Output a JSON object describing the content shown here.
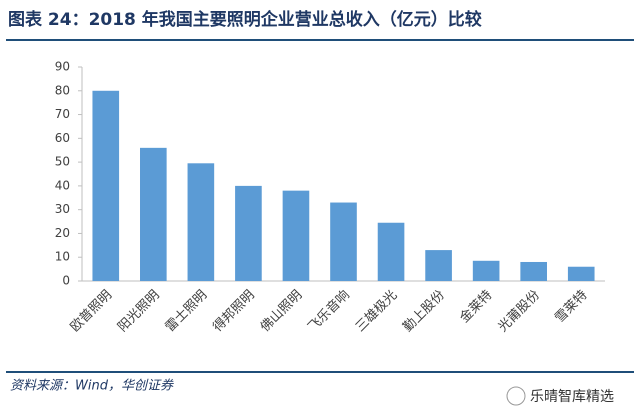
{
  "chart_data": {
    "type": "bar",
    "title": "图表 24：2018 年我国主要照明企业营业总收入（亿元）比较",
    "categories": [
      "欧普照明",
      "阳光照明",
      "雷士照明",
      "得邦照明",
      "佛山照明",
      "飞乐音响",
      "三雄极光",
      "勤上股份",
      "金莱特",
      "光莆股份",
      "雪莱特"
    ],
    "values": [
      80,
      56,
      49.5,
      40,
      38,
      33,
      24.5,
      13,
      8.5,
      8,
      6
    ],
    "color": "#5b9bd5",
    "ylim": [
      0,
      90
    ],
    "yticks": [
      0,
      10,
      20,
      30,
      40,
      50,
      60,
      70,
      80,
      90
    ],
    "grid": false,
    "source": "资料来源：Wind，华创证券",
    "watermark": "乐晴智库精选"
  }
}
